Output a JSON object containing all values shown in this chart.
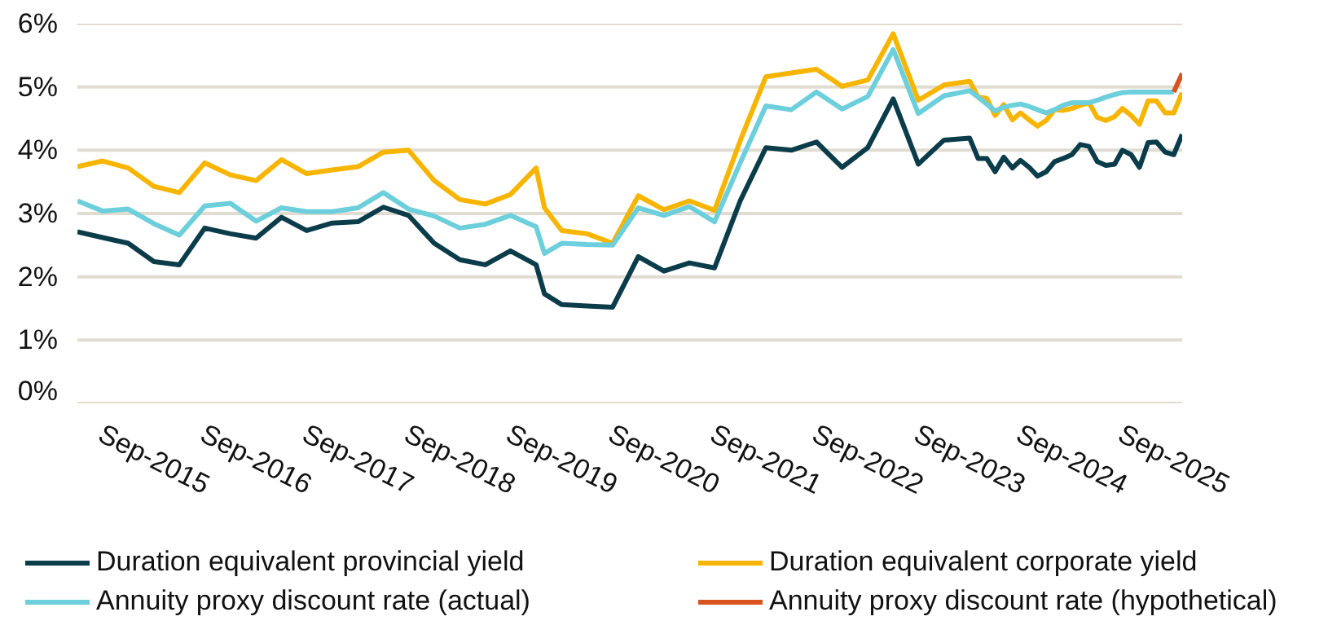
{
  "chart_data": {
    "type": "line",
    "x": [
      "2014-12",
      "2015-03",
      "2015-06",
      "2015-09",
      "2015-12",
      "2016-03",
      "2016-06",
      "2016-09",
      "2016-12",
      "2017-03",
      "2017-06",
      "2017-09",
      "2017-12",
      "2018-03",
      "2018-06",
      "2018-09",
      "2018-12",
      "2019-03",
      "2019-06",
      "2019-07",
      "2019-09",
      "2019-12",
      "2020-03",
      "2020-06",
      "2020-09",
      "2020-12",
      "2021-03",
      "2021-06",
      "2021-09",
      "2021-12",
      "2022-03",
      "2022-06",
      "2022-09",
      "2022-12",
      "2023-03",
      "2023-06",
      "2023-09",
      "2023-10",
      "2023-11",
      "2023-12",
      "2024-01",
      "2024-02",
      "2024-03",
      "2024-04",
      "2024-05",
      "2024-06",
      "2024-07",
      "2024-08",
      "2024-09",
      "2024-10",
      "2024-11",
      "2024-12",
      "2025-01",
      "2025-02",
      "2025-03",
      "2025-04",
      "2025-05",
      "2025-06",
      "2025-07",
      "2025-08",
      "2025-09",
      "2025-10"
    ],
    "series": [
      {
        "name": "Duration equivalent provincial yield",
        "color": "#0b3c4a",
        "values": [
          2.71,
          2.62,
          2.53,
          2.24,
          2.19,
          2.77,
          2.68,
          2.61,
          2.94,
          2.73,
          2.85,
          2.87,
          3.1,
          2.97,
          2.53,
          2.27,
          2.19,
          2.41,
          2.19,
          1.73,
          1.56,
          1.54,
          1.52,
          2.32,
          2.09,
          2.22,
          2.14,
          3.2,
          4.04,
          4.0,
          4.13,
          3.73,
          4.04,
          4.81,
          3.78,
          4.16,
          4.19,
          3.87,
          3.87,
          3.66,
          3.89,
          3.72,
          3.84,
          3.73,
          3.59,
          3.66,
          3.82,
          3.87,
          3.93,
          4.09,
          4.06,
          3.82,
          3.76,
          3.78,
          4.0,
          3.93,
          3.73,
          4.12,
          4.13,
          3.97,
          3.93,
          4.25
        ]
      },
      {
        "name": "Duration equivalent corporate yield",
        "color": "#f7b500",
        "values": [
          3.74,
          3.83,
          3.72,
          3.43,
          3.33,
          3.8,
          3.61,
          3.52,
          3.85,
          3.63,
          3.69,
          3.74,
          3.97,
          4.0,
          3.52,
          3.22,
          3.15,
          3.3,
          3.72,
          3.09,
          2.73,
          2.68,
          2.53,
          3.28,
          3.06,
          3.2,
          3.05,
          4.15,
          5.16,
          5.22,
          5.28,
          5.01,
          5.11,
          5.84,
          4.79,
          5.03,
          5.09,
          4.84,
          4.82,
          4.55,
          4.72,
          4.48,
          4.59,
          4.48,
          4.38,
          4.47,
          4.64,
          4.63,
          4.66,
          4.71,
          4.75,
          4.52,
          4.47,
          4.53,
          4.66,
          4.55,
          4.41,
          4.78,
          4.78,
          4.59,
          4.59,
          4.91
        ]
      },
      {
        "name": "Annuity proxy discount rate (actual)",
        "color": "#6ccfdb",
        "values": [
          3.2,
          3.04,
          3.07,
          2.84,
          2.66,
          3.12,
          3.16,
          2.88,
          3.09,
          3.03,
          3.03,
          3.09,
          3.33,
          3.07,
          2.96,
          2.77,
          2.83,
          2.97,
          2.79,
          2.37,
          2.53,
          2.51,
          2.5,
          3.09,
          2.97,
          3.11,
          2.87,
          3.8,
          4.7,
          4.64,
          4.92,
          4.65,
          4.85,
          5.59,
          4.58,
          4.86,
          4.94,
          4.84,
          4.73,
          4.62,
          4.68,
          4.71,
          4.73,
          4.69,
          4.64,
          4.59,
          4.64,
          4.71,
          4.75,
          4.75,
          4.75,
          4.79,
          4.84,
          4.88,
          4.91,
          4.92,
          4.92,
          4.92,
          4.92,
          4.92,
          4.92,
          null
        ]
      },
      {
        "name": "Annuity proxy discount rate (hypothetical)",
        "color": "#d9531e",
        "x": [
          "2025-09",
          "2025-10"
        ],
        "values": [
          4.92,
          5.21
        ]
      }
    ],
    "xlim": [
      "2014-12",
      "2025-10"
    ],
    "xticks": [
      {
        "value": "2015-09",
        "label": "Sep-2015"
      },
      {
        "value": "2016-09",
        "label": "Sep-2016"
      },
      {
        "value": "2017-09",
        "label": "Sep-2017"
      },
      {
        "value": "2018-09",
        "label": "Sep-2018"
      },
      {
        "value": "2019-09",
        "label": "Sep-2019"
      },
      {
        "value": "2020-09",
        "label": "Sep-2020"
      },
      {
        "value": "2021-09",
        "label": "Sep-2021"
      },
      {
        "value": "2022-09",
        "label": "Sep-2022"
      },
      {
        "value": "2023-09",
        "label": "Sep-2023"
      },
      {
        "value": "2024-09",
        "label": "Sep-2024"
      },
      {
        "value": "2025-09",
        "label": "Sep-2025"
      }
    ],
    "ylim": [
      0,
      6
    ],
    "yticks": [
      {
        "value": 0,
        "label": "0%"
      },
      {
        "value": 1,
        "label": "1%"
      },
      {
        "value": 2,
        "label": "2%"
      },
      {
        "value": 3,
        "label": "3%"
      },
      {
        "value": 4,
        "label": "4%"
      },
      {
        "value": 5,
        "label": "5%"
      },
      {
        "value": 6,
        "label": "6%"
      }
    ],
    "grid": "y",
    "legend": "bottom",
    "line_style": "solid"
  }
}
